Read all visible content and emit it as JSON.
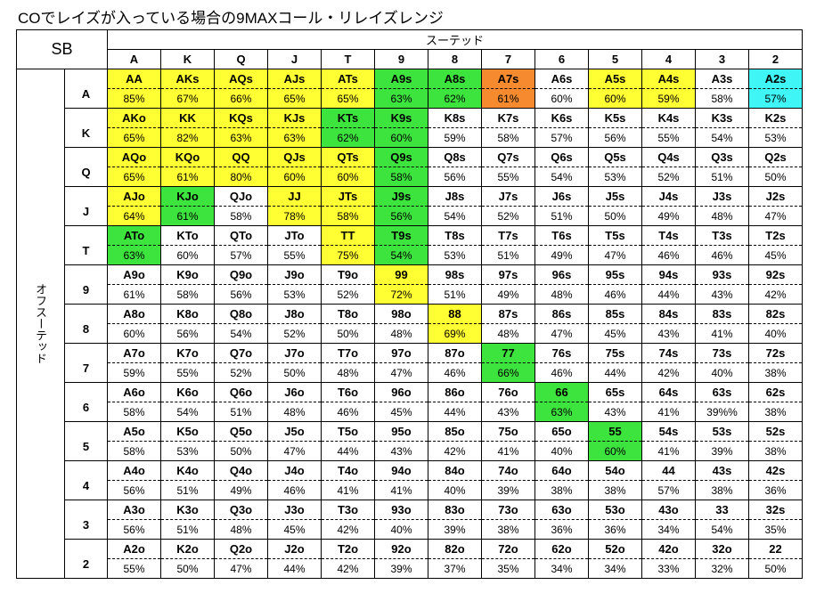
{
  "title": "COでレイズが入っている場合の9MAXコール・リレイズレンジ",
  "corner": "SB",
  "column_header": "スーテッド",
  "row_header": "オフスーテッド",
  "columns": [
    "A",
    "K",
    "Q",
    "J",
    "T",
    "9",
    "8",
    "7",
    "6",
    "5",
    "4",
    "3",
    "2"
  ],
  "rows": [
    {
      "label": "A",
      "cells": [
        {
          "hand": "AA",
          "pct": "85%",
          "color": "#ffff33"
        },
        {
          "hand": "AKs",
          "pct": "67%",
          "color": "#ffff33"
        },
        {
          "hand": "AQs",
          "pct": "66%",
          "color": "#ffff33"
        },
        {
          "hand": "AJs",
          "pct": "65%",
          "color": "#ffff33"
        },
        {
          "hand": "ATs",
          "pct": "65%",
          "color": "#ffff33"
        },
        {
          "hand": "A9s",
          "pct": "63%",
          "color": "#3ee43e"
        },
        {
          "hand": "A8s",
          "pct": "62%",
          "color": "#3ee43e"
        },
        {
          "hand": "A7s",
          "pct": "61%",
          "color": "#f58a2e"
        },
        {
          "hand": "A6s",
          "pct": "60%"
        },
        {
          "hand": "A5s",
          "pct": "60%",
          "color": "#ffff33"
        },
        {
          "hand": "A4s",
          "pct": "59%",
          "color": "#ffff33"
        },
        {
          "hand": "A3s",
          "pct": "58%"
        },
        {
          "hand": "A2s",
          "pct": "57%",
          "color": "#3ff5f5"
        }
      ]
    },
    {
      "label": "K",
      "cells": [
        {
          "hand": "AKo",
          "pct": "65%",
          "color": "#ffff33"
        },
        {
          "hand": "KK",
          "pct": "82%",
          "color": "#ffff33"
        },
        {
          "hand": "KQs",
          "pct": "63%",
          "color": "#ffff33"
        },
        {
          "hand": "KJs",
          "pct": "63%",
          "color": "#ffff33"
        },
        {
          "hand": "KTs",
          "pct": "62%",
          "color": "#3ee43e"
        },
        {
          "hand": "K9s",
          "pct": "60%",
          "color": "#3ee43e"
        },
        {
          "hand": "K8s",
          "pct": "59%"
        },
        {
          "hand": "K7s",
          "pct": "58%"
        },
        {
          "hand": "K6s",
          "pct": "57%"
        },
        {
          "hand": "K5s",
          "pct": "56%"
        },
        {
          "hand": "K4s",
          "pct": "55%"
        },
        {
          "hand": "K3s",
          "pct": "54%"
        },
        {
          "hand": "K2s",
          "pct": "53%"
        }
      ]
    },
    {
      "label": "Q",
      "cells": [
        {
          "hand": "AQo",
          "pct": "65%",
          "color": "#ffff33"
        },
        {
          "hand": "KQo",
          "pct": "61%",
          "color": "#ffff33"
        },
        {
          "hand": "QQ",
          "pct": "80%",
          "color": "#ffff33"
        },
        {
          "hand": "QJs",
          "pct": "60%",
          "color": "#ffff33"
        },
        {
          "hand": "QTs",
          "pct": "60%",
          "color": "#ffff33"
        },
        {
          "hand": "Q9s",
          "pct": "58%",
          "color": "#3ee43e"
        },
        {
          "hand": "Q8s",
          "pct": "56%"
        },
        {
          "hand": "Q7s",
          "pct": "55%"
        },
        {
          "hand": "Q6s",
          "pct": "54%"
        },
        {
          "hand": "Q5s",
          "pct": "53%"
        },
        {
          "hand": "Q4s",
          "pct": "52%"
        },
        {
          "hand": "Q3s",
          "pct": "51%"
        },
        {
          "hand": "Q2s",
          "pct": "50%"
        }
      ]
    },
    {
      "label": "J",
      "cells": [
        {
          "hand": "AJo",
          "pct": "64%",
          "color": "#ffff33"
        },
        {
          "hand": "KJo",
          "pct": "61%",
          "color": "#3ee43e"
        },
        {
          "hand": "QJo",
          "pct": "58%"
        },
        {
          "hand": "JJ",
          "pct": "78%",
          "color": "#ffff33"
        },
        {
          "hand": "JTs",
          "pct": "58%",
          "color": "#ffff33"
        },
        {
          "hand": "J9s",
          "pct": "56%",
          "color": "#3ee43e"
        },
        {
          "hand": "J8s",
          "pct": "54%"
        },
        {
          "hand": "J7s",
          "pct": "52%"
        },
        {
          "hand": "J6s",
          "pct": "51%"
        },
        {
          "hand": "J5s",
          "pct": "50%"
        },
        {
          "hand": "J4s",
          "pct": "49%"
        },
        {
          "hand": "J3s",
          "pct": "48%"
        },
        {
          "hand": "J2s",
          "pct": "47%"
        }
      ]
    },
    {
      "label": "T",
      "cells": [
        {
          "hand": "ATo",
          "pct": "63%",
          "color": "#3ee43e"
        },
        {
          "hand": "KTo",
          "pct": "60%"
        },
        {
          "hand": "QTo",
          "pct": "57%"
        },
        {
          "hand": "JTo",
          "pct": "55%"
        },
        {
          "hand": "TT",
          "pct": "75%",
          "color": "#ffff33"
        },
        {
          "hand": "T9s",
          "pct": "54%",
          "color": "#3ee43e"
        },
        {
          "hand": "T8s",
          "pct": "53%"
        },
        {
          "hand": "T7s",
          "pct": "51%"
        },
        {
          "hand": "T6s",
          "pct": "49%"
        },
        {
          "hand": "T5s",
          "pct": "47%"
        },
        {
          "hand": "T4s",
          "pct": "46%"
        },
        {
          "hand": "T3s",
          "pct": "46%"
        },
        {
          "hand": "T2s",
          "pct": "45%"
        }
      ]
    },
    {
      "label": "9",
      "cells": [
        {
          "hand": "A9o",
          "pct": "61%"
        },
        {
          "hand": "K9o",
          "pct": "58%"
        },
        {
          "hand": "Q9o",
          "pct": "56%"
        },
        {
          "hand": "J9o",
          "pct": "53%"
        },
        {
          "hand": "T9o",
          "pct": "52%"
        },
        {
          "hand": "99",
          "pct": "72%",
          "color": "#ffff33"
        },
        {
          "hand": "98s",
          "pct": "51%"
        },
        {
          "hand": "97s",
          "pct": "49%"
        },
        {
          "hand": "96s",
          "pct": "48%"
        },
        {
          "hand": "95s",
          "pct": "46%"
        },
        {
          "hand": "94s",
          "pct": "44%"
        },
        {
          "hand": "93s",
          "pct": "43%"
        },
        {
          "hand": "92s",
          "pct": "42%"
        }
      ]
    },
    {
      "label": "8",
      "cells": [
        {
          "hand": "A8o",
          "pct": "60%"
        },
        {
          "hand": "K8o",
          "pct": "56%"
        },
        {
          "hand": "Q8o",
          "pct": "54%"
        },
        {
          "hand": "J8o",
          "pct": "52%"
        },
        {
          "hand": "T8o",
          "pct": "50%"
        },
        {
          "hand": "98o",
          "pct": "48%"
        },
        {
          "hand": "88",
          "pct": "69%",
          "color": "#ffff33"
        },
        {
          "hand": "87s",
          "pct": "48%"
        },
        {
          "hand": "86s",
          "pct": "47%"
        },
        {
          "hand": "85s",
          "pct": "45%"
        },
        {
          "hand": "84s",
          "pct": "43%"
        },
        {
          "hand": "83s",
          "pct": "41%"
        },
        {
          "hand": "82s",
          "pct": "40%"
        }
      ]
    },
    {
      "label": "7",
      "cells": [
        {
          "hand": "A7o",
          "pct": "59%"
        },
        {
          "hand": "K7o",
          "pct": "55%"
        },
        {
          "hand": "Q7o",
          "pct": "52%"
        },
        {
          "hand": "J7o",
          "pct": "50%"
        },
        {
          "hand": "T7o",
          "pct": "48%"
        },
        {
          "hand": "97o",
          "pct": "47%"
        },
        {
          "hand": "87o",
          "pct": "46%"
        },
        {
          "hand": "77",
          "pct": "66%",
          "color": "#3ee43e"
        },
        {
          "hand": "76s",
          "pct": "46%"
        },
        {
          "hand": "75s",
          "pct": "44%"
        },
        {
          "hand": "74s",
          "pct": "42%"
        },
        {
          "hand": "73s",
          "pct": "40%"
        },
        {
          "hand": "72s",
          "pct": "38%"
        }
      ]
    },
    {
      "label": "6",
      "cells": [
        {
          "hand": "A6o",
          "pct": "58%"
        },
        {
          "hand": "K6o",
          "pct": "54%"
        },
        {
          "hand": "Q6o",
          "pct": "51%"
        },
        {
          "hand": "J6o",
          "pct": "48%"
        },
        {
          "hand": "T6o",
          "pct": "46%"
        },
        {
          "hand": "96o",
          "pct": "45%"
        },
        {
          "hand": "86o",
          "pct": "44%"
        },
        {
          "hand": "76o",
          "pct": "43%"
        },
        {
          "hand": "66",
          "pct": "63%",
          "color": "#3ee43e"
        },
        {
          "hand": "65s",
          "pct": "43%"
        },
        {
          "hand": "64s",
          "pct": "41%"
        },
        {
          "hand": "63s",
          "pct": "39%%"
        },
        {
          "hand": "62s",
          "pct": "38%"
        }
      ]
    },
    {
      "label": "5",
      "cells": [
        {
          "hand": "A5o",
          "pct": "58%"
        },
        {
          "hand": "K5o",
          "pct": "53%"
        },
        {
          "hand": "Q5o",
          "pct": "50%"
        },
        {
          "hand": "J5o",
          "pct": "47%"
        },
        {
          "hand": "T5o",
          "pct": "44%"
        },
        {
          "hand": "95o",
          "pct": "43%"
        },
        {
          "hand": "85o",
          "pct": "42%"
        },
        {
          "hand": "75o",
          "pct": "41%"
        },
        {
          "hand": "65o",
          "pct": "40%"
        },
        {
          "hand": "55",
          "pct": "60%",
          "color": "#3ee43e"
        },
        {
          "hand": "54s",
          "pct": "41%"
        },
        {
          "hand": "53s",
          "pct": "39%"
        },
        {
          "hand": "52s",
          "pct": "38%"
        }
      ]
    },
    {
      "label": "4",
      "cells": [
        {
          "hand": "A4o",
          "pct": "56%"
        },
        {
          "hand": "K4o",
          "pct": "51%"
        },
        {
          "hand": "Q4o",
          "pct": "49%"
        },
        {
          "hand": "J4o",
          "pct": "46%"
        },
        {
          "hand": "T4o",
          "pct": "41%"
        },
        {
          "hand": "94o",
          "pct": "41%"
        },
        {
          "hand": "84o",
          "pct": "40%"
        },
        {
          "hand": "74o",
          "pct": "39%"
        },
        {
          "hand": "64o",
          "pct": "38%"
        },
        {
          "hand": "54o",
          "pct": "38%"
        },
        {
          "hand": "44",
          "pct": "57%"
        },
        {
          "hand": "43s",
          "pct": "38%"
        },
        {
          "hand": "42s",
          "pct": "36%"
        }
      ]
    },
    {
      "label": "3",
      "cells": [
        {
          "hand": "A3o",
          "pct": "56%"
        },
        {
          "hand": "K3o",
          "pct": "51%"
        },
        {
          "hand": "Q3o",
          "pct": "48%"
        },
        {
          "hand": "J3o",
          "pct": "45%"
        },
        {
          "hand": "T3o",
          "pct": "42%"
        },
        {
          "hand": "93o",
          "pct": "40%"
        },
        {
          "hand": "83o",
          "pct": "39%"
        },
        {
          "hand": "73o",
          "pct": "38%"
        },
        {
          "hand": "63o",
          "pct": "36%"
        },
        {
          "hand": "53o",
          "pct": "36%"
        },
        {
          "hand": "43o",
          "pct": "34%"
        },
        {
          "hand": "33",
          "pct": "54%"
        },
        {
          "hand": "32s",
          "pct": "35%"
        }
      ]
    },
    {
      "label": "2",
      "cells": [
        {
          "hand": "A2o",
          "pct": "55%"
        },
        {
          "hand": "K2o",
          "pct": "50%"
        },
        {
          "hand": "Q2o",
          "pct": "47%"
        },
        {
          "hand": "J2o",
          "pct": "44%"
        },
        {
          "hand": "T2o",
          "pct": "42%"
        },
        {
          "hand": "92o",
          "pct": "39%"
        },
        {
          "hand": "82o",
          "pct": "37%"
        },
        {
          "hand": "72o",
          "pct": "35%"
        },
        {
          "hand": "62o",
          "pct": "34%"
        },
        {
          "hand": "52o",
          "pct": "34%"
        },
        {
          "hand": "42o",
          "pct": "33%"
        },
        {
          "hand": "32o",
          "pct": "32%"
        },
        {
          "hand": "22",
          "pct": "50%"
        }
      ]
    }
  ]
}
